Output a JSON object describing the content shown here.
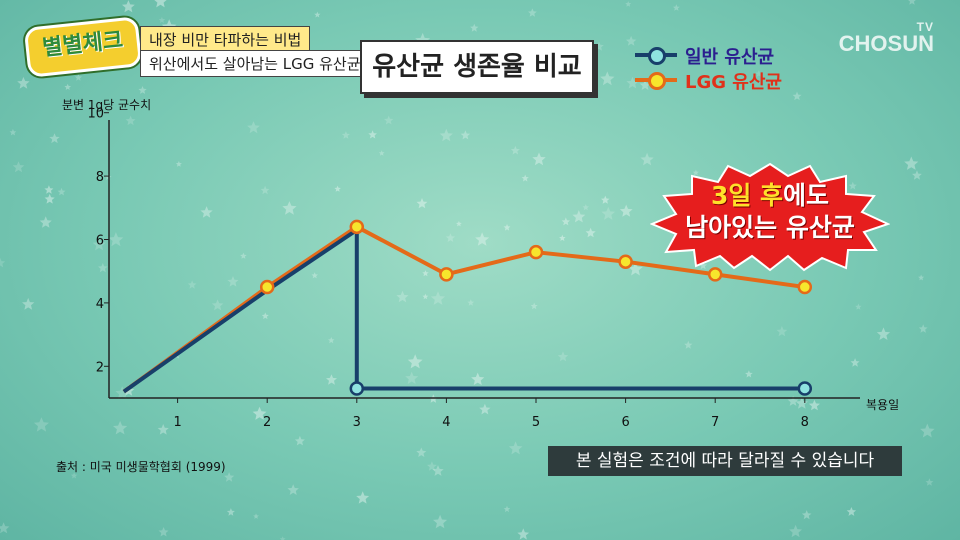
{
  "logo": {
    "text": "별별체크"
  },
  "caption": {
    "line1": "내장 비만 타파하는 비법",
    "line2": "위산에서도 살아남는 LGG 유산균"
  },
  "broadcaster": {
    "tv": "TV",
    "name": "CHOSUN"
  },
  "callout": {
    "highlight1": "3일 후",
    "rest1": "에도",
    "line2": "남아있는 유산균"
  },
  "source": "출처 : 미국 미생물학협회 (1999)",
  "notice": "본 실험은 조건에 따라 달라질 수 있습니다",
  "colors": {
    "regular": "#183f6a",
    "lgg": "#e46a19",
    "marker_fill": "#f7e62c",
    "regular_marker_fill": "#8fe3e0"
  },
  "chart_data": {
    "type": "line",
    "title": "유산균 생존율 비교",
    "xlabel": "복용일",
    "ylabel": "분변 1g당 균수치",
    "xlim": [
      0,
      9
    ],
    "ylim": [
      1,
      10
    ],
    "x_ticks": [
      1,
      2,
      3,
      4,
      5,
      6,
      7,
      8
    ],
    "y_ticks": [
      2,
      4,
      6,
      8,
      10
    ],
    "grid": false,
    "legend_position": "top-right",
    "series": [
      {
        "name": "일반 유산균",
        "color": "#183f6a",
        "points": [
          [
            0.4,
            1.2
          ],
          [
            2.0,
            4.4
          ],
          [
            3.0,
            6.3
          ],
          [
            3.0,
            1.3
          ],
          [
            8.0,
            1.3
          ]
        ],
        "markers": [
          [
            3.0,
            1.3
          ],
          [
            8.0,
            1.3
          ]
        ]
      },
      {
        "name": "LGG 유산균",
        "color": "#e46a19",
        "points": [
          [
            0.4,
            1.2
          ],
          [
            2.0,
            4.5
          ],
          [
            3.0,
            6.4
          ],
          [
            4.0,
            4.9
          ],
          [
            5.0,
            5.6
          ],
          [
            6.0,
            5.3
          ],
          [
            7.0,
            4.9
          ],
          [
            8.0,
            4.5
          ]
        ],
        "markers": [
          [
            2.0,
            4.5
          ],
          [
            3.0,
            6.4
          ],
          [
            4.0,
            4.9
          ],
          [
            5.0,
            5.6
          ],
          [
            6.0,
            5.3
          ],
          [
            7.0,
            4.9
          ],
          [
            8.0,
            4.5
          ]
        ]
      }
    ]
  }
}
